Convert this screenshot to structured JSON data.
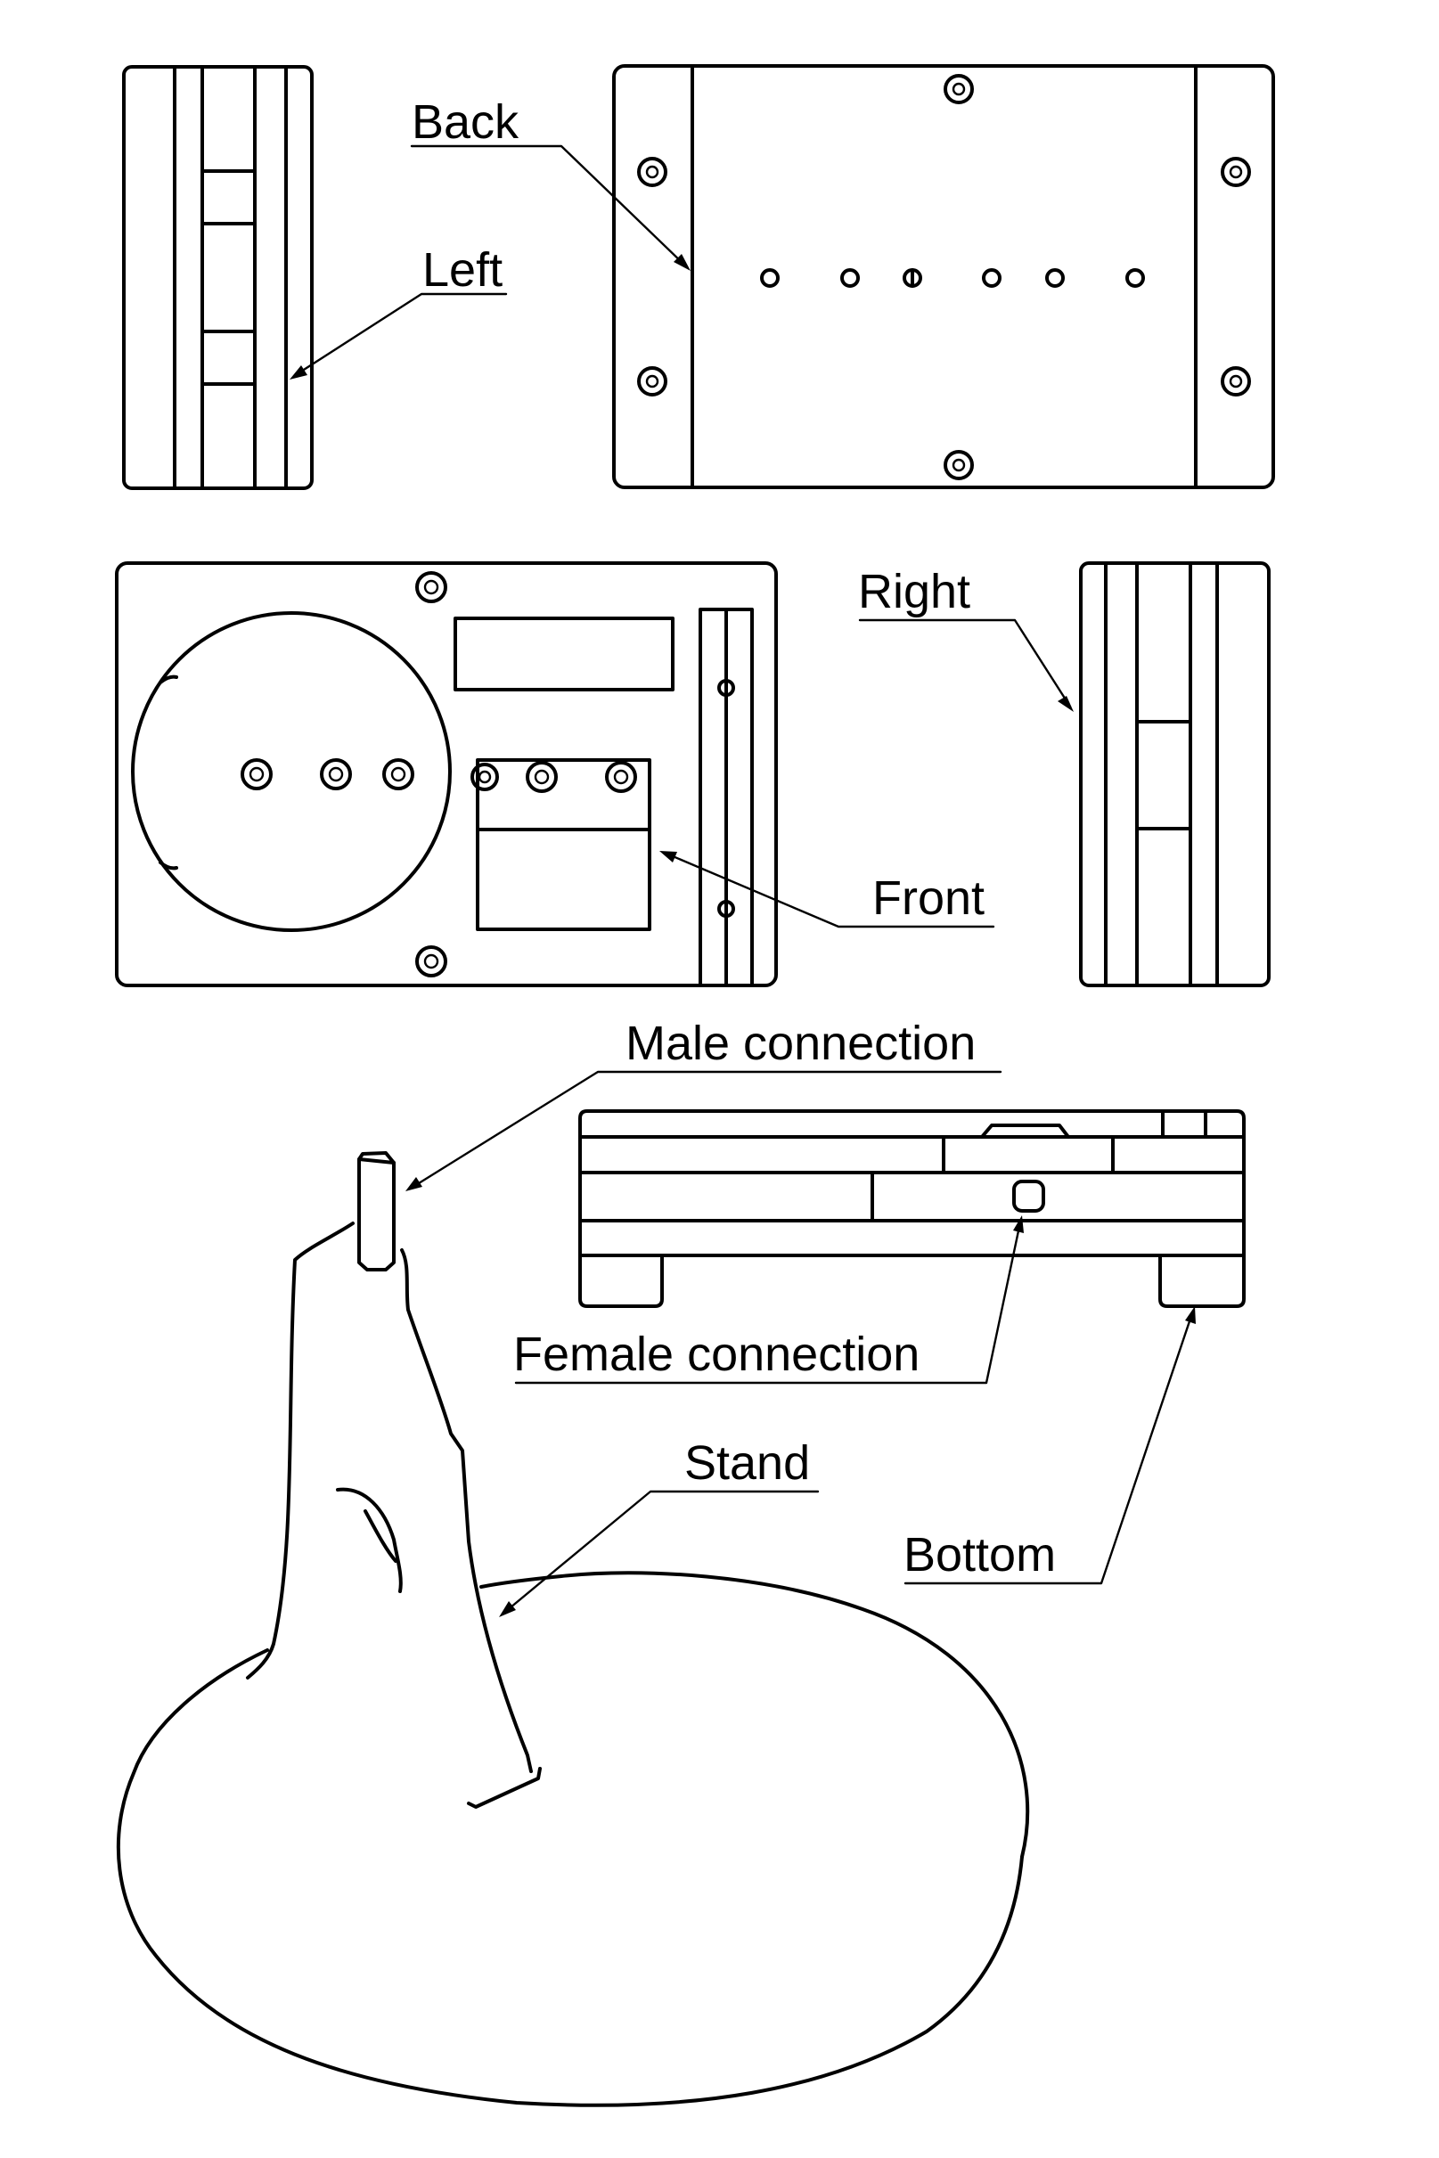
{
  "labels": {
    "back": "Back",
    "left": "Left",
    "right": "Right",
    "front": "Front",
    "male_connection": "Male connection",
    "female_connection": "Female connection",
    "stand": "Stand",
    "bottom": "Bottom"
  }
}
